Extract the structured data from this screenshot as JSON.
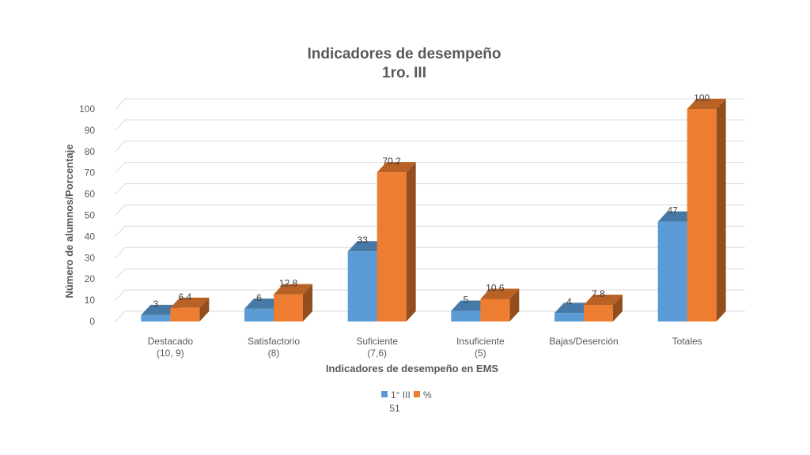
{
  "chart_data": {
    "type": "bar",
    "title_line1": "Indicadores de desempeño",
    "title_line2": "1ro. III",
    "xlabel": "Indicadores de desempeño en EMS",
    "ylabel": "Número de alumnos/Porcentaje",
    "ylim": [
      0,
      100
    ],
    "yticks": [
      0,
      10,
      20,
      30,
      40,
      50,
      60,
      70,
      80,
      90,
      100
    ],
    "categories": [
      [
        "Destacado",
        "(10, 9)"
      ],
      [
        "Satisfactorio",
        "(8)"
      ],
      [
        "Suficiente",
        "(7,6)"
      ],
      [
        "Insuficiente",
        "(5)"
      ],
      [
        "Bajas/Deserción",
        ""
      ],
      [
        "Totales",
        ""
      ]
    ],
    "series": [
      {
        "name": "1° III",
        "values": [
          3,
          6,
          33,
          5,
          4,
          47
        ],
        "labels": [
          "3",
          "6",
          "33",
          "5",
          "4",
          "47"
        ],
        "color": "#5b9bd5"
      },
      {
        "name": "%",
        "values": [
          6.4,
          12.8,
          70.2,
          10.6,
          7.8,
          100
        ],
        "labels": [
          "6.4",
          "12.8",
          "70.2",
          "10.6",
          "7.8",
          "100"
        ],
        "color": "#ed7d31"
      }
    ],
    "legend_note": "51",
    "legend_position": "bottom",
    "grid": true,
    "style": "3d-clustered-column"
  }
}
